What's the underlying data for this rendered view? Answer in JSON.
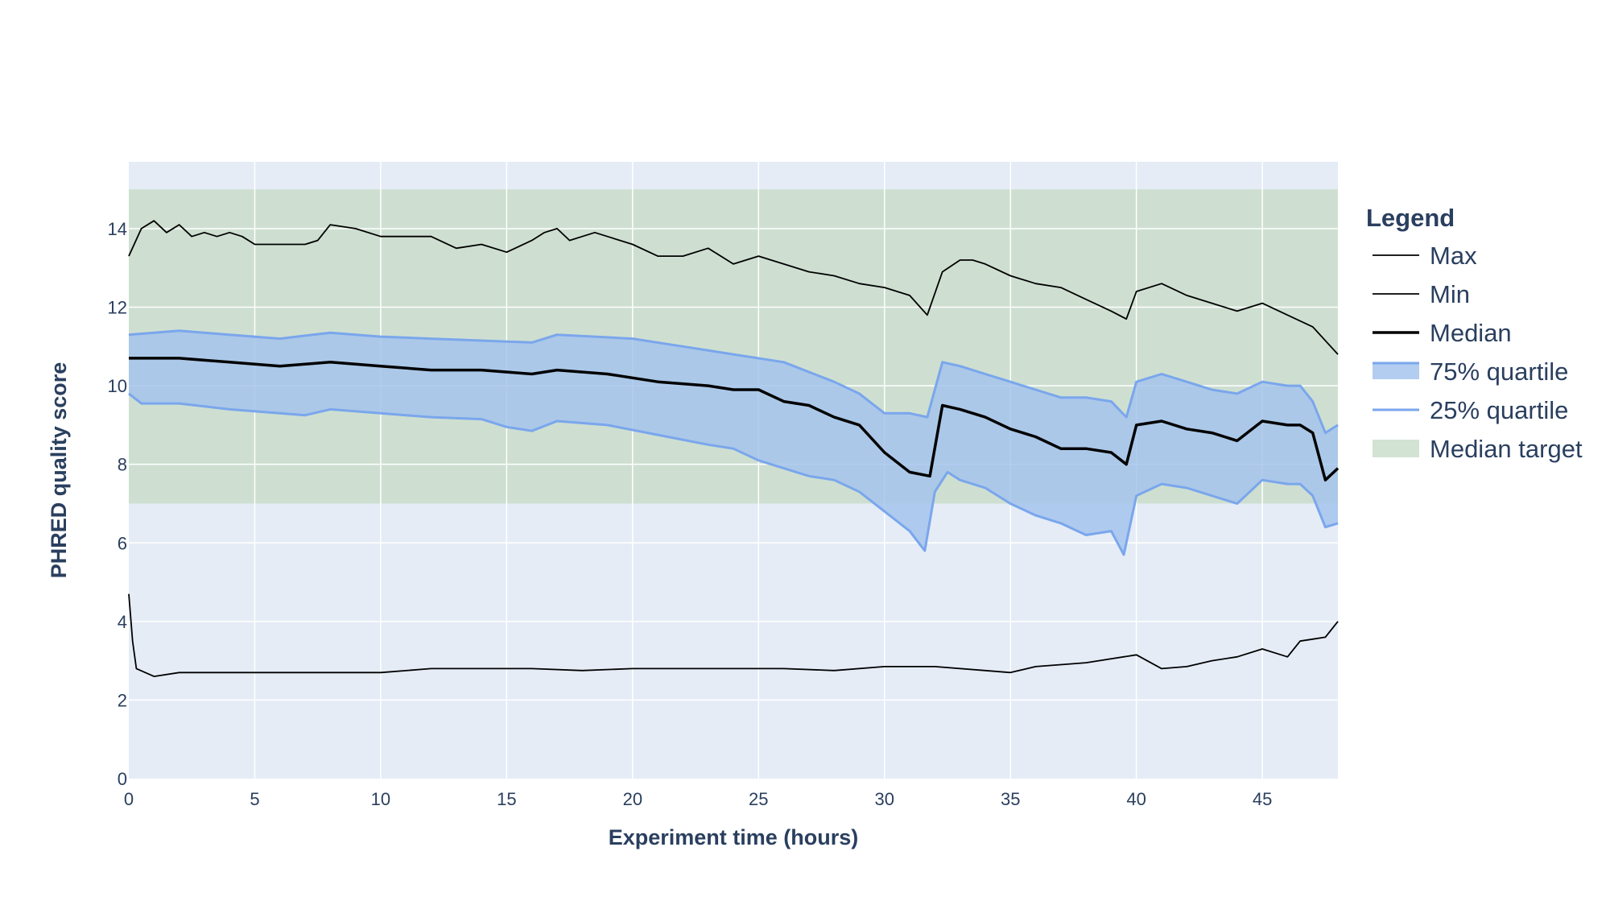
{
  "chart_data": {
    "type": "line",
    "title": "",
    "xlabel": "Experiment time (hours)",
    "ylabel": "PHRED quality score",
    "xlim": [
      0,
      48
    ],
    "ylim": [
      0,
      15.7
    ],
    "x_ticks": [
      0,
      5,
      10,
      15,
      20,
      25,
      30,
      35,
      40,
      45
    ],
    "y_ticks": [
      0,
      2,
      4,
      6,
      8,
      10,
      12,
      14
    ],
    "grid": true,
    "legend": {
      "title": "Legend",
      "placement": "right"
    },
    "target_band": {
      "name": "Median target",
      "y_range": [
        7,
        15
      ],
      "color": "#c8dcc8"
    },
    "series": [
      {
        "name": "Max",
        "kind": "line",
        "color": "#000000",
        "points": [
          [
            0,
            13.3
          ],
          [
            0.5,
            14.0
          ],
          [
            1,
            14.2
          ],
          [
            1.5,
            13.9
          ],
          [
            2,
            14.1
          ],
          [
            2.5,
            13.8
          ],
          [
            3,
            13.9
          ],
          [
            3.5,
            13.8
          ],
          [
            4,
            13.9
          ],
          [
            4.5,
            13.8
          ],
          [
            5,
            13.6
          ],
          [
            6,
            13.6
          ],
          [
            7,
            13.6
          ],
          [
            7.5,
            13.7
          ],
          [
            8,
            14.1
          ],
          [
            9,
            14.0
          ],
          [
            10,
            13.8
          ],
          [
            11,
            13.8
          ],
          [
            12,
            13.8
          ],
          [
            13,
            13.5
          ],
          [
            14,
            13.6
          ],
          [
            15,
            13.4
          ],
          [
            16,
            13.7
          ],
          [
            16.5,
            13.9
          ],
          [
            17,
            14.0
          ],
          [
            17.5,
            13.7
          ],
          [
            18,
            13.8
          ],
          [
            18.5,
            13.9
          ],
          [
            19,
            13.8
          ],
          [
            20,
            13.6
          ],
          [
            21,
            13.3
          ],
          [
            22,
            13.3
          ],
          [
            23,
            13.5
          ],
          [
            24,
            13.1
          ],
          [
            25,
            13.3
          ],
          [
            26,
            13.1
          ],
          [
            27,
            12.9
          ],
          [
            28,
            12.8
          ],
          [
            29,
            12.6
          ],
          [
            30,
            12.5
          ],
          [
            31,
            12.3
          ],
          [
            31.7,
            11.8
          ],
          [
            32.3,
            12.9
          ],
          [
            33,
            13.2
          ],
          [
            33.5,
            13.2
          ],
          [
            34,
            13.1
          ],
          [
            35,
            12.8
          ],
          [
            36,
            12.6
          ],
          [
            37,
            12.5
          ],
          [
            38,
            12.2
          ],
          [
            39,
            11.9
          ],
          [
            39.6,
            11.7
          ],
          [
            40,
            12.4
          ],
          [
            41,
            12.6
          ],
          [
            42,
            12.3
          ],
          [
            43,
            12.1
          ],
          [
            44,
            11.9
          ],
          [
            45,
            12.1
          ],
          [
            46,
            11.8
          ],
          [
            47,
            11.5
          ],
          [
            48,
            10.8
          ]
        ]
      },
      {
        "name": "Min",
        "kind": "line",
        "color": "#000000",
        "points": [
          [
            0,
            4.7
          ],
          [
            0.15,
            3.5
          ],
          [
            0.3,
            2.8
          ],
          [
            1,
            2.6
          ],
          [
            2,
            2.7
          ],
          [
            3,
            2.7
          ],
          [
            4,
            2.7
          ],
          [
            6,
            2.7
          ],
          [
            8,
            2.7
          ],
          [
            10,
            2.7
          ],
          [
            12,
            2.8
          ],
          [
            14,
            2.8
          ],
          [
            16,
            2.8
          ],
          [
            18,
            2.75
          ],
          [
            20,
            2.8
          ],
          [
            22,
            2.8
          ],
          [
            24,
            2.8
          ],
          [
            26,
            2.8
          ],
          [
            28,
            2.75
          ],
          [
            30,
            2.85
          ],
          [
            32,
            2.85
          ],
          [
            34,
            2.75
          ],
          [
            35,
            2.7
          ],
          [
            36,
            2.85
          ],
          [
            38,
            2.95
          ],
          [
            40,
            3.15
          ],
          [
            41,
            2.8
          ],
          [
            42,
            2.85
          ],
          [
            43,
            3.0
          ],
          [
            44,
            3.1
          ],
          [
            45,
            3.3
          ],
          [
            46,
            3.1
          ],
          [
            46.5,
            3.5
          ],
          [
            47,
            3.55
          ],
          [
            47.5,
            3.6
          ],
          [
            48,
            4.0
          ]
        ]
      },
      {
        "name": "Median",
        "kind": "line",
        "color": "#000000",
        "points": [
          [
            0,
            10.7
          ],
          [
            2,
            10.7
          ],
          [
            4,
            10.6
          ],
          [
            6,
            10.5
          ],
          [
            8,
            10.6
          ],
          [
            10,
            10.5
          ],
          [
            12,
            10.4
          ],
          [
            14,
            10.4
          ],
          [
            16,
            10.3
          ],
          [
            17,
            10.4
          ],
          [
            19,
            10.3
          ],
          [
            21,
            10.1
          ],
          [
            23,
            10.0
          ],
          [
            24,
            9.9
          ],
          [
            25,
            9.9
          ],
          [
            26,
            9.6
          ],
          [
            27,
            9.5
          ],
          [
            28,
            9.2
          ],
          [
            29,
            9.0
          ],
          [
            30,
            8.3
          ],
          [
            31,
            7.8
          ],
          [
            31.8,
            7.7
          ],
          [
            32.3,
            9.5
          ],
          [
            33,
            9.4
          ],
          [
            34,
            9.2
          ],
          [
            35,
            8.9
          ],
          [
            36,
            8.7
          ],
          [
            37,
            8.4
          ],
          [
            38,
            8.4
          ],
          [
            39,
            8.3
          ],
          [
            39.6,
            8.0
          ],
          [
            40,
            9.0
          ],
          [
            41,
            9.1
          ],
          [
            42,
            8.9
          ],
          [
            43,
            8.8
          ],
          [
            44,
            8.6
          ],
          [
            45,
            9.1
          ],
          [
            46,
            9.0
          ],
          [
            46.5,
            9.0
          ],
          [
            47,
            8.8
          ],
          [
            47.5,
            7.6
          ],
          [
            48,
            7.9
          ]
        ]
      },
      {
        "name": "75% quartile",
        "kind": "band-upper",
        "color": "#7aa6ec",
        "points": [
          [
            0,
            11.3
          ],
          [
            2,
            11.4
          ],
          [
            4,
            11.3
          ],
          [
            6,
            11.2
          ],
          [
            8,
            11.35
          ],
          [
            10,
            11.25
          ],
          [
            12,
            11.2
          ],
          [
            14,
            11.15
          ],
          [
            16,
            11.1
          ],
          [
            17,
            11.3
          ],
          [
            20,
            11.2
          ],
          [
            22,
            11.0
          ],
          [
            24,
            10.8
          ],
          [
            26,
            10.6
          ],
          [
            28,
            10.1
          ],
          [
            29,
            9.8
          ],
          [
            30,
            9.3
          ],
          [
            31,
            9.3
          ],
          [
            31.7,
            9.2
          ],
          [
            32.3,
            10.6
          ],
          [
            33,
            10.5
          ],
          [
            34,
            10.3
          ],
          [
            35,
            10.1
          ],
          [
            36,
            9.9
          ],
          [
            37,
            9.7
          ],
          [
            38,
            9.7
          ],
          [
            39,
            9.6
          ],
          [
            39.6,
            9.2
          ],
          [
            40,
            10.1
          ],
          [
            41,
            10.3
          ],
          [
            42,
            10.1
          ],
          [
            43,
            9.9
          ],
          [
            44,
            9.8
          ],
          [
            45,
            10.1
          ],
          [
            46,
            10.0
          ],
          [
            46.5,
            10.0
          ],
          [
            47,
            9.6
          ],
          [
            47.5,
            8.8
          ],
          [
            48,
            9.0
          ]
        ]
      },
      {
        "name": "25% quartile",
        "kind": "band-lower",
        "color": "#7aa6ec",
        "points": [
          [
            0,
            9.8
          ],
          [
            0.5,
            9.55
          ],
          [
            2,
            9.55
          ],
          [
            4,
            9.4
          ],
          [
            6,
            9.3
          ],
          [
            7,
            9.25
          ],
          [
            8,
            9.4
          ],
          [
            10,
            9.3
          ],
          [
            12,
            9.2
          ],
          [
            14,
            9.15
          ],
          [
            15,
            8.95
          ],
          [
            16,
            8.85
          ],
          [
            17,
            9.1
          ],
          [
            19,
            9.0
          ],
          [
            21,
            8.75
          ],
          [
            23,
            8.5
          ],
          [
            24,
            8.4
          ],
          [
            25,
            8.1
          ],
          [
            26,
            7.9
          ],
          [
            27,
            7.7
          ],
          [
            28,
            7.6
          ],
          [
            29,
            7.3
          ],
          [
            30,
            6.8
          ],
          [
            31,
            6.3
          ],
          [
            31.6,
            5.8
          ],
          [
            32,
            7.3
          ],
          [
            32.5,
            7.8
          ],
          [
            33,
            7.6
          ],
          [
            34,
            7.4
          ],
          [
            35,
            7.0
          ],
          [
            36,
            6.7
          ],
          [
            37,
            6.5
          ],
          [
            38,
            6.2
          ],
          [
            39,
            6.3
          ],
          [
            39.5,
            5.7
          ],
          [
            40,
            7.2
          ],
          [
            41,
            7.5
          ],
          [
            42,
            7.4
          ],
          [
            43,
            7.2
          ],
          [
            44,
            7.0
          ],
          [
            45,
            7.6
          ],
          [
            46,
            7.5
          ],
          [
            46.5,
            7.5
          ],
          [
            47,
            7.2
          ],
          [
            47.5,
            6.4
          ],
          [
            48,
            6.5
          ]
        ]
      }
    ],
    "band_fill_color": "#a4c4ec",
    "legend_items": [
      "Max",
      "Min",
      "Median",
      "75% quartile",
      "25% quartile",
      "Median target"
    ]
  }
}
